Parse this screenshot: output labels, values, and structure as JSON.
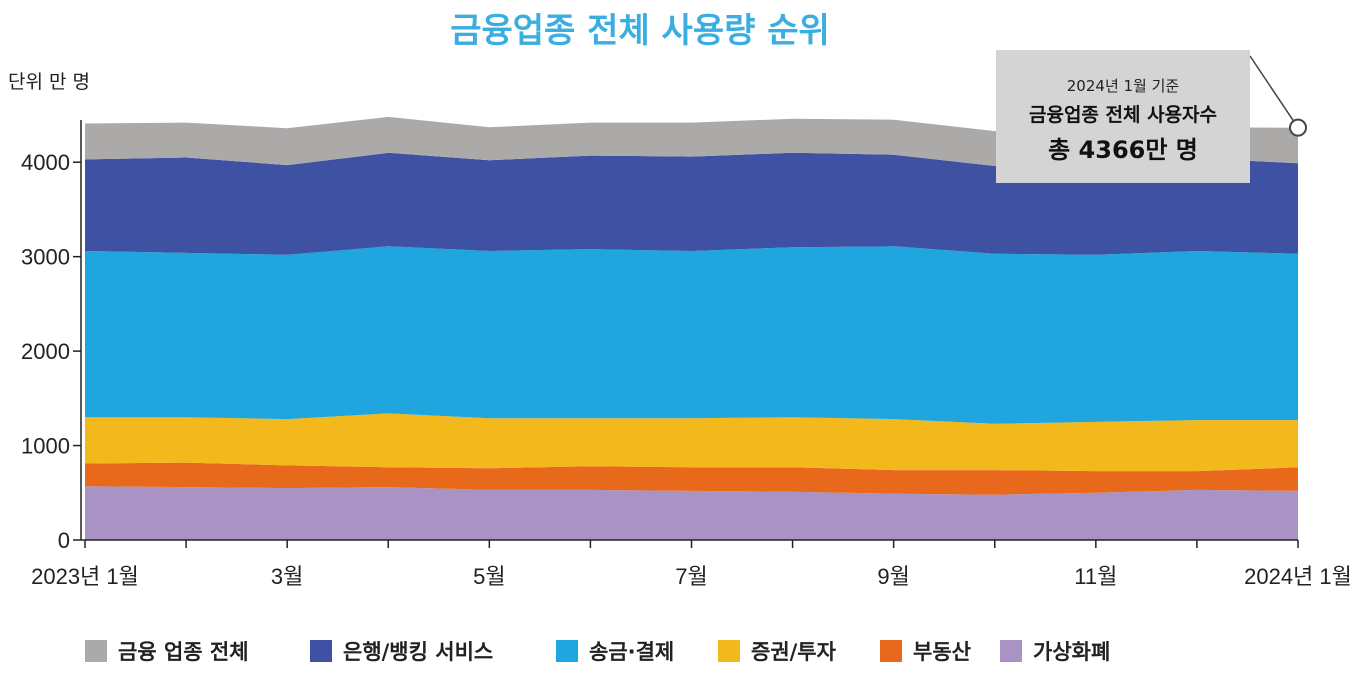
{
  "chart_data": {
    "type": "area",
    "stacked": true,
    "title": "금융업종 전체 사용량 순위",
    "unit_label": "단위 만 명",
    "x": [
      "2023-01",
      "2023-02",
      "2023-03",
      "2023-04",
      "2023-05",
      "2023-06",
      "2023-07",
      "2023-08",
      "2023-09",
      "2023-10",
      "2023-11",
      "2023-12",
      "2024-01"
    ],
    "x_tick_labels": [
      "2023년 1월",
      "",
      "3월",
      "",
      "5월",
      "",
      "7월",
      "",
      "9월",
      "",
      "11월",
      "",
      "2024년 1월"
    ],
    "ylim": [
      0,
      4500
    ],
    "y_ticks": [
      0,
      1000,
      2000,
      3000,
      4000
    ],
    "grid": false,
    "legend_position": "bottom",
    "series": [
      {
        "name": "가상화폐",
        "color": "#a993c4",
        "values": [
          570,
          560,
          550,
          560,
          530,
          530,
          520,
          510,
          490,
          480,
          500,
          530,
          520
        ]
      },
      {
        "name": "부동산",
        "color": "#e8691b",
        "values": [
          240,
          260,
          240,
          210,
          230,
          250,
          250,
          260,
          250,
          260,
          230,
          200,
          250
        ]
      },
      {
        "name": "증권/투자",
        "color": "#f2b81c",
        "values": [
          490,
          480,
          490,
          570,
          530,
          510,
          520,
          530,
          540,
          490,
          520,
          540,
          500
        ]
      },
      {
        "name": "송금·결제",
        "color": "#1fa6de",
        "values": [
          1760,
          1740,
          1740,
          1770,
          1770,
          1790,
          1770,
          1800,
          1830,
          1800,
          1770,
          1790,
          1760
        ]
      },
      {
        "name": "은행/뱅킹 서비스",
        "color": "#3f51a3",
        "values": [
          970,
          1010,
          950,
          990,
          960,
          990,
          1000,
          1000,
          970,
          930,
          960,
          980,
          960
        ]
      },
      {
        "name": "금융 업종 전체",
        "color": "#aca9a9",
        "values": [
          380,
          370,
          390,
          380,
          350,
          350,
          360,
          360,
          370,
          370,
          360,
          330,
          376
        ]
      }
    ],
    "annotation": {
      "line1": "2024년 1월 기준",
      "line2": "금융업종 전체 사용자수",
      "line3": "총 4366만 명",
      "total": 4366,
      "target_x": "2024-01"
    }
  },
  "legend": [
    {
      "label": "금융 업종 전체",
      "color": "#aca9a9"
    },
    {
      "label": "은행/뱅킹 서비스",
      "color": "#3f51a3"
    },
    {
      "label": "송금·결제",
      "color": "#1fa6de"
    },
    {
      "label": "증권/투자",
      "color": "#f2b81c"
    },
    {
      "label": "부동산",
      "color": "#e8691b"
    },
    {
      "label": "가상화폐",
      "color": "#a993c4"
    }
  ]
}
